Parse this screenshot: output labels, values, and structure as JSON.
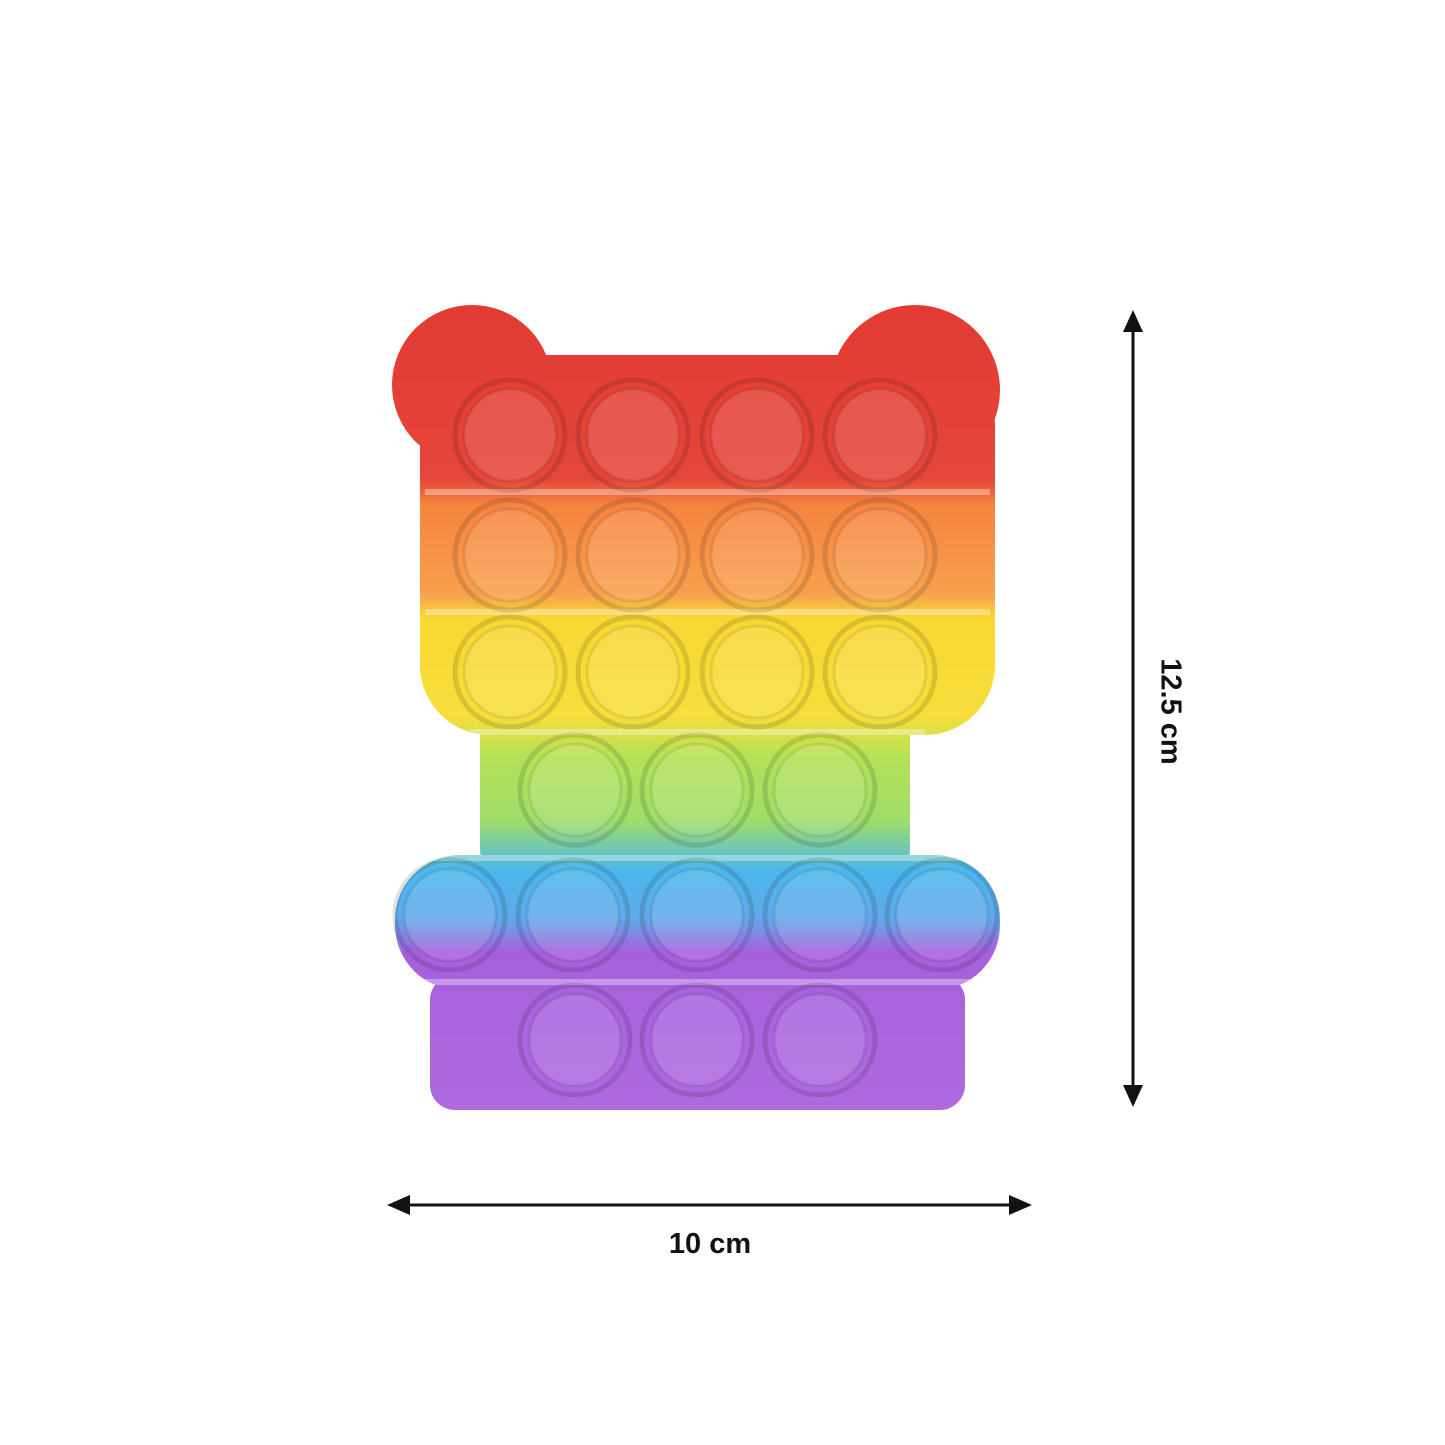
{
  "product": {
    "name": "",
    "shape": "bear",
    "colors": {
      "red": "#e03a34",
      "orange": "#f7924a",
      "yellow": "#f8d92e",
      "green": "#a9e05a",
      "blue": "#4fb6ec",
      "purple": "#a35fdc"
    },
    "rows": [
      {
        "color": "red",
        "bubbles": 4
      },
      {
        "color": "orange",
        "bubbles": 4
      },
      {
        "color": "yellow",
        "bubbles": 4
      },
      {
        "color": "green",
        "bubbles": 3
      },
      {
        "color": "blue",
        "bubbles": 5
      },
      {
        "color": "purple",
        "bubbles": 3
      }
    ]
  },
  "dimensions": {
    "width_label": "10 cm",
    "height_label": "12.5 cm",
    "arrow_color": "#111111"
  }
}
